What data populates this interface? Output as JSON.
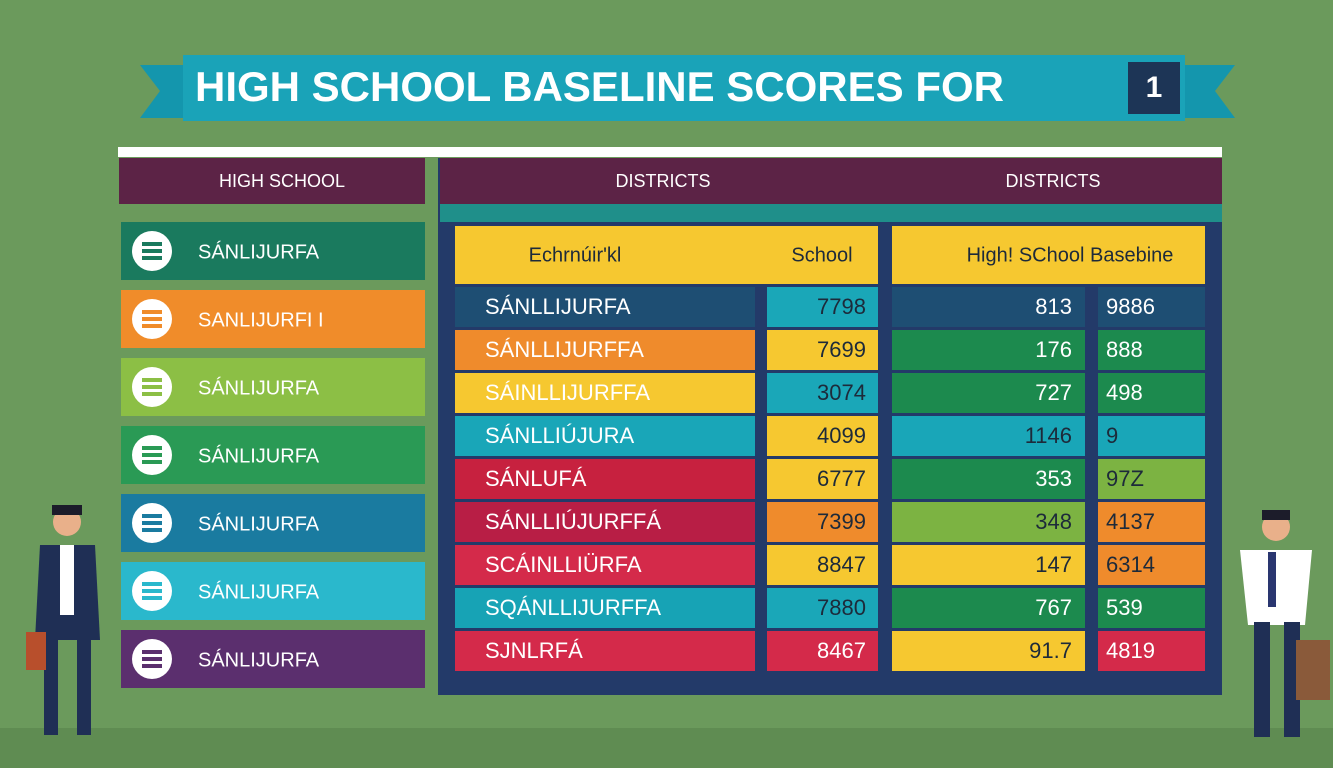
{
  "banner": {
    "title": "HIGH SCHOOL BASELINE SCORES FOR",
    "badge": "1"
  },
  "left_panel": {
    "header": "HIGH SCHOOL",
    "items": [
      "SÁNLIJURFA",
      "SANLIJURFI I",
      "SÁNLIJURFA",
      "SÁNLIJURFA",
      "SÁNLIJURFA",
      "SÁNLIJURFA",
      "SÁNLIJURFA"
    ]
  },
  "district_headers": [
    "DISTRICTS",
    "DISTRICTS"
  ],
  "table_left": {
    "headers": [
      "Echrnúir'kl",
      "School"
    ],
    "rows": [
      [
        "SÁNLLIJURFA",
        "7798"
      ],
      [
        "SÁNLLIJURFFA",
        "7699"
      ],
      [
        "SÁINLLIJURFFA",
        "3074"
      ],
      [
        "SÁNLLIÚJURA",
        "4099"
      ],
      [
        "SÁNLUFÁ",
        "6777"
      ],
      [
        "SÁNLLIÚJURFFÁ",
        "7399"
      ],
      [
        "SCÁINLLIÜRFA",
        "8847"
      ],
      [
        "SQÁNLLIJURFFA",
        "7880"
      ],
      [
        "SJNLRFÁ",
        "8467"
      ]
    ]
  },
  "table_right": {
    "header": "High! SChool Basebine",
    "rows": [
      [
        "813",
        "9886"
      ],
      [
        "176",
        "888"
      ],
      [
        "727",
        "498"
      ],
      [
        "1146",
        "9"
      ],
      [
        "353",
        "97Z"
      ],
      [
        "348",
        "4137"
      ],
      [
        "147",
        "6314"
      ],
      [
        "767",
        "539"
      ],
      [
        "91.7",
        "4819"
      ]
    ]
  }
}
